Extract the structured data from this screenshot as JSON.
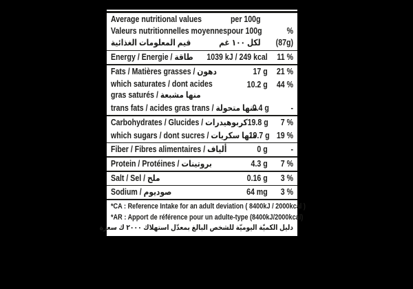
{
  "colors": {
    "page_background": "#000000",
    "panel_background": "#ffffff",
    "ink": "#1d1d1b"
  },
  "header": {
    "col1_lines": [
      "Average nutritional values",
      "Valeurs nutritionnelles moyennes",
      "قيم المعلومات الغذائية"
    ],
    "col2_lines": [
      "per 100g",
      "pour 100g",
      "لكل ١٠٠ غم"
    ],
    "col3_lines": [
      "",
      "%",
      "(87g)"
    ]
  },
  "rows": [
    {
      "label": "Energy / Energie / طاقة",
      "label2": "",
      "value": "1039 kJ / 249 kcal",
      "percent": "11 %",
      "divider_after": true
    },
    {
      "label": "Fats / Matières grasses / دهون",
      "label2": "",
      "value": "17 g",
      "percent": "21 %",
      "divider_after": false
    },
    {
      "label": "which saturates / dont acides",
      "label2": "gras saturés / منها مشبعة",
      "value": "10.2 g",
      "percent": "44 %",
      "divider_after": false
    },
    {
      "label": "trans fats / acides gras trans / منها متحولة",
      "label2": "",
      "value": "0.4 g",
      "percent": "-",
      "divider_after": true
    },
    {
      "label": "Carbohydrates / Glucides / كربوهيدرات",
      "label2": "",
      "value": "19.8 g",
      "percent": "7 %",
      "divider_after": false
    },
    {
      "label": "which sugars / dont sucres / منها سكريات",
      "label2": "",
      "value": "19.7 g",
      "percent": "19 %",
      "divider_after": true
    },
    {
      "label": "Fiber / Fibres alimentaires / ألياف",
      "label2": "",
      "value": "0 g",
      "percent": "-",
      "divider_after": true
    },
    {
      "label": "Protein / Protéines / بروتينات",
      "label2": "",
      "value": "4.3 g",
      "percent": "7 %",
      "divider_after": true
    },
    {
      "label": "Salt / Sel / ملح",
      "label2": "",
      "value": "0.16 g",
      "percent": "3 %",
      "divider_after": true
    },
    {
      "label": "Sodium / صوديوم",
      "label2": "",
      "value": "64 mg",
      "percent": "3 %",
      "divider_after": true
    }
  ],
  "footnotes": [
    "*CA : Reference Intake for an adult deviation ( 8400kJ / 2000kcal )",
    "*AR : Apport de référence pour un adulte-type (8400kJ/2000kcal)",
    "دليل الكميّة اليوميّة للشخص البالغ بمعدّل استهلاك ٢٠٠٠ ك سعرة"
  ]
}
